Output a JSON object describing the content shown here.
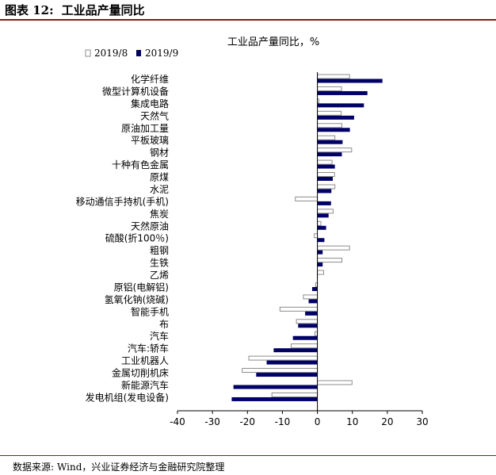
{
  "figure": {
    "number_label": "图表 12:",
    "title": "工业品产量同比"
  },
  "source": {
    "label": "数据来源:",
    "text": "Wind，兴业证券经济与金融研究院整理"
  },
  "colors": {
    "series_2019_8_fill": "#ffffff",
    "series_2019_8_stroke": "#8c8c8c",
    "series_2019_9": "#000066",
    "rule": "#8b1a1a"
  },
  "chart_data": {
    "type": "bar",
    "orientation": "horizontal",
    "title": "工业品产量同比，%",
    "xlim": [
      -40,
      30
    ],
    "xticks": [
      -40,
      -30,
      -20,
      -10,
      0,
      10,
      20,
      30
    ],
    "grid": false,
    "legend_position": "top-left",
    "categories": [
      "化学纤维",
      "微型计算机设备",
      "集成电路",
      "天然气",
      "原油加工量",
      "平板玻璃",
      "钢材",
      "十种有色金属",
      "原煤",
      "水泥",
      "移动通信手持机(手机)",
      "焦炭",
      "天然原油",
      "硫酸(折100％)",
      "粗钢",
      "生铁",
      "乙烯",
      "原铝(电解铝)",
      "氢氧化钠(烧碱)",
      "智能手机",
      "布",
      "汽车",
      "汽车:轿车",
      "工业机器人",
      "金属切削机床",
      "新能源汽车",
      "发电机组(发电设备)"
    ],
    "series": [
      {
        "name": "2019/8",
        "values": [
          9.2,
          6.9,
          0.4,
          6.8,
          7.0,
          5.0,
          9.8,
          4.2,
          4.9,
          5.0,
          -6.3,
          4.5,
          1.0,
          -0.9,
          9.2,
          7.0,
          1.8,
          -0.5,
          -4.0,
          -10.7,
          -6.0,
          -0.7,
          -7.5,
          -19.6,
          -21.5,
          9.9,
          -13.0
        ]
      },
      {
        "name": "2019/9",
        "values": [
          18.6,
          14.3,
          13.3,
          10.5,
          9.3,
          7.2,
          7.0,
          5.0,
          4.4,
          4.0,
          3.9,
          3.2,
          2.5,
          2.0,
          1.5,
          1.5,
          -0.1,
          -1.5,
          -2.5,
          -3.5,
          -5.5,
          -7.0,
          -12.5,
          -14.5,
          -17.5,
          -24.0,
          -24.5
        ]
      }
    ]
  }
}
